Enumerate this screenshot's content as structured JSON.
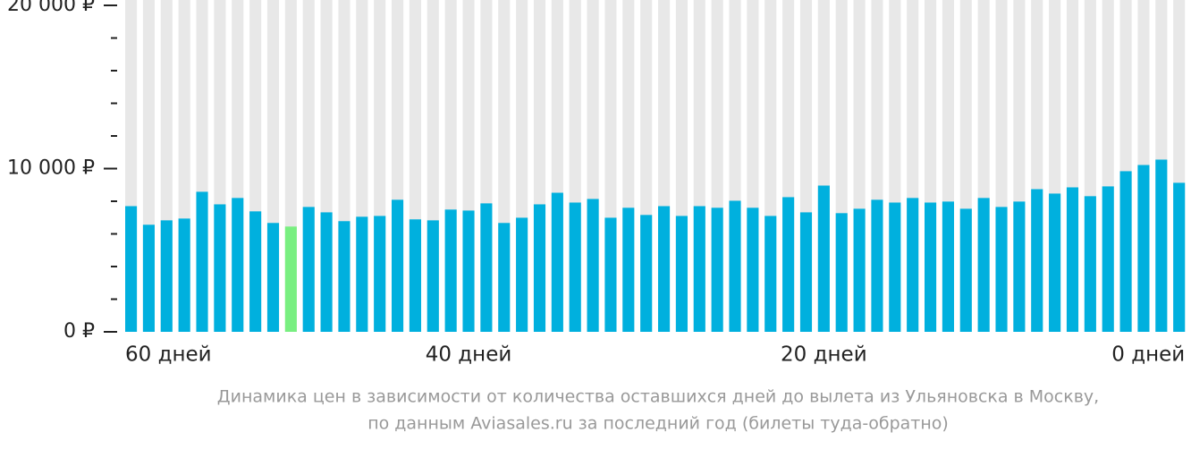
{
  "chart_data": {
    "type": "bar",
    "categories": [
      "60 дней",
      null,
      null,
      null,
      null,
      null,
      null,
      null,
      null,
      null,
      null,
      null,
      null,
      null,
      null,
      null,
      null,
      null,
      null,
      "40 дней",
      null,
      null,
      null,
      null,
      null,
      null,
      null,
      null,
      null,
      null,
      null,
      null,
      null,
      null,
      null,
      null,
      null,
      null,
      null,
      "20 дней",
      null,
      null,
      null,
      null,
      null,
      null,
      null,
      null,
      null,
      null,
      null,
      null,
      null,
      null,
      null,
      null,
      null,
      null,
      null,
      "0 дней"
    ],
    "values": [
      7700,
      6560,
      6830,
      6940,
      8580,
      7810,
      8200,
      7380,
      6670,
      6450,
      7650,
      7320,
      6780,
      7050,
      7100,
      8090,
      6890,
      6830,
      7490,
      7430,
      7870,
      6670,
      6990,
      7810,
      8520,
      7920,
      8140,
      6990,
      7600,
      7160,
      7700,
      7100,
      7700,
      7600,
      8030,
      7600,
      7100,
      8250,
      7320,
      8960,
      7270,
      7540,
      8090,
      7920,
      8200,
      7920,
      7980,
      7540,
      8200,
      7650,
      7980,
      8740,
      8470,
      8850,
      8310,
      8910,
      9840,
      10220,
      10550,
      9130
    ],
    "color": "#00b0de",
    "highlight": {
      "index": 9,
      "color": "#78ef80"
    },
    "background_color": "#e8e8e8",
    "ylim": [
      0,
      20000
    ],
    "yticks": [
      {
        "value": 0,
        "label": "0 ₽"
      },
      {
        "value": 10000,
        "label": "10 000 ₽"
      },
      {
        "value": 20000,
        "label": "20 000 ₽"
      }
    ],
    "minor_yticks": [
      2000,
      4000,
      6000,
      8000,
      12000,
      14000,
      16000,
      18000
    ],
    "caption": [
      "Динамика цен в зависимости от количества оставшихся дней до вылета из Ульяновска в Москву,",
      "по данным Aviasales.ru за последний год (билеты туда-обратно)"
    ]
  }
}
